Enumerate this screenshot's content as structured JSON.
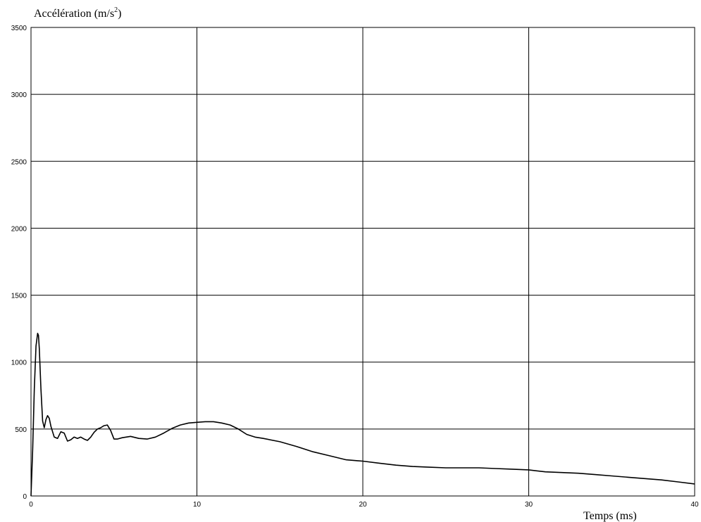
{
  "chart_data": {
    "type": "line",
    "title": "",
    "ylabel": "Accélération (m/s²)",
    "ylabel_base": "Accélération (m/s",
    "ylabel_sup": "2",
    "ylabel_end": ")",
    "xlabel": "Temps (ms)",
    "xlim": [
      0,
      40
    ],
    "ylim": [
      0,
      3500
    ],
    "xticks": [
      0,
      10,
      20,
      30,
      40
    ],
    "yticks": [
      0,
      500,
      1000,
      1500,
      2000,
      2500,
      3000,
      3500
    ],
    "grid": true,
    "series": [
      {
        "x": [
          0,
          0.1,
          0.2,
          0.3,
          0.4,
          0.45,
          0.5,
          0.6,
          0.7,
          0.8,
          0.9,
          1.0,
          1.1,
          1.2,
          1.4,
          1.6,
          1.8,
          2.0,
          2.2,
          2.4,
          2.6,
          2.8,
          3.0,
          3.2,
          3.4,
          3.6,
          3.8,
          4.0,
          4.2,
          4.4,
          4.6,
          4.8,
          5.0,
          5.2,
          5.5,
          6.0,
          6.5,
          7.0,
          7.5,
          8.0,
          8.5,
          9.0,
          9.5,
          10.0,
          10.5,
          11.0,
          11.5,
          12.0,
          12.5,
          13.0,
          13.5,
          14.0,
          15.0,
          16.0,
          17.0,
          18.0,
          19.0,
          20.0,
          21.0,
          22.0,
          23.0,
          24.0,
          25.0,
          26.0,
          27.0,
          28.0,
          29.0,
          30.0,
          31.0,
          32.0,
          33.0,
          34.0,
          35.0,
          36.0,
          37.0,
          38.0,
          39.0,
          40.0
        ],
        "y": [
          0,
          350,
          800,
          1120,
          1215,
          1200,
          1100,
          800,
          560,
          510,
          570,
          600,
          580,
          520,
          440,
          430,
          480,
          470,
          410,
          420,
          440,
          430,
          440,
          425,
          415,
          440,
          475,
          500,
          510,
          525,
          530,
          490,
          425,
          425,
          435,
          445,
          430,
          425,
          440,
          470,
          505,
          530,
          545,
          550,
          555,
          555,
          545,
          530,
          500,
          460,
          440,
          430,
          405,
          370,
          330,
          300,
          270,
          260,
          245,
          230,
          220,
          215,
          210,
          210,
          210,
          205,
          200,
          195,
          180,
          175,
          170,
          160,
          150,
          140,
          130,
          120,
          105,
          90
        ]
      }
    ]
  }
}
